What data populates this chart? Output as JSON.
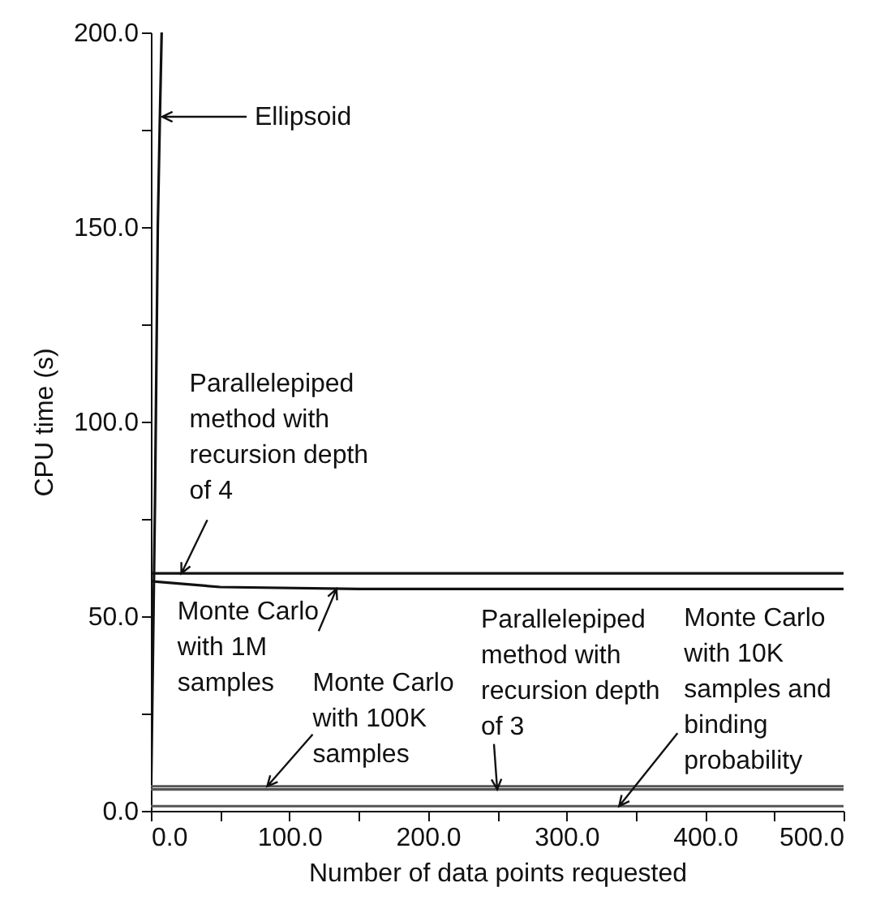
{
  "chart_data": {
    "type": "line",
    "xlabel": "Number of data points requested",
    "ylabel": "CPU time (s)",
    "xlim": [
      0,
      500
    ],
    "ylim": [
      0,
      200
    ],
    "xticks": [
      {
        "value": 0,
        "label": "0.0"
      },
      {
        "value": 50,
        "label": null
      },
      {
        "value": 100,
        "label": "100.0"
      },
      {
        "value": 150,
        "label": null
      },
      {
        "value": 200,
        "label": "200.0"
      },
      {
        "value": 250,
        "label": null
      },
      {
        "value": 300,
        "label": "300.0"
      },
      {
        "value": 350,
        "label": null
      },
      {
        "value": 400,
        "label": "400.0"
      },
      {
        "value": 450,
        "label": null
      },
      {
        "value": 500,
        "label": "500.0"
      }
    ],
    "yticks": [
      {
        "value": 0,
        "label": "0.0"
      },
      {
        "value": 25,
        "label": null
      },
      {
        "value": 50,
        "label": "50.0"
      },
      {
        "value": 75,
        "label": null
      },
      {
        "value": 100,
        "label": "100.0"
      },
      {
        "value": 125,
        "label": null
      },
      {
        "value": 150,
        "label": "150.0"
      },
      {
        "value": 175,
        "label": null
      },
      {
        "value": 200,
        "label": "200.0"
      }
    ],
    "grid": false,
    "series": [
      {
        "color": "#111111",
        "x": [
          0,
          3,
          5,
          6.5,
          7.8
        ],
        "values": [
          0,
          80,
          150,
          178,
          200
        ]
      },
      {
        "color": "#111111",
        "x": [
          0,
          500
        ],
        "values": [
          61,
          61
        ]
      },
      {
        "color": "#111111",
        "x": [
          0,
          50,
          150,
          500
        ],
        "values": [
          59,
          57.5,
          57,
          57
        ]
      },
      {
        "color": "#555555",
        "x": [
          0,
          500
        ],
        "values": [
          6.3,
          6.3
        ]
      },
      {
        "color": "#555555",
        "x": [
          0,
          500
        ],
        "values": [
          5.5,
          5.5
        ]
      },
      {
        "color": "#555555",
        "x": [
          0,
          500
        ],
        "values": [
          1.2,
          1.2
        ]
      }
    ],
    "annotations": [
      "Ellipsoid",
      {
        "text": "Parallelepiped\nmethod with\nrecursion depth\nof 4",
        "x": 22,
        "y": 61
      },
      {
        "text": "Monte Carlo\nwith 1M\nsamples",
        "x": 134,
        "y": 57
      },
      {
        "text": "Monte Carlo\nwith 100K\nsamples",
        "x": 84,
        "y": 6.3
      },
      {
        "text": "Parallelepiped\nmethod with\nrecursion depth\nof 3",
        "x": 250,
        "y": 5.5
      },
      {
        "text": "Monte Carlo\nwith 10K\nsamples and\nbinding\nprobability",
        "x": 338,
        "y": 1.2
      }
    ]
  }
}
